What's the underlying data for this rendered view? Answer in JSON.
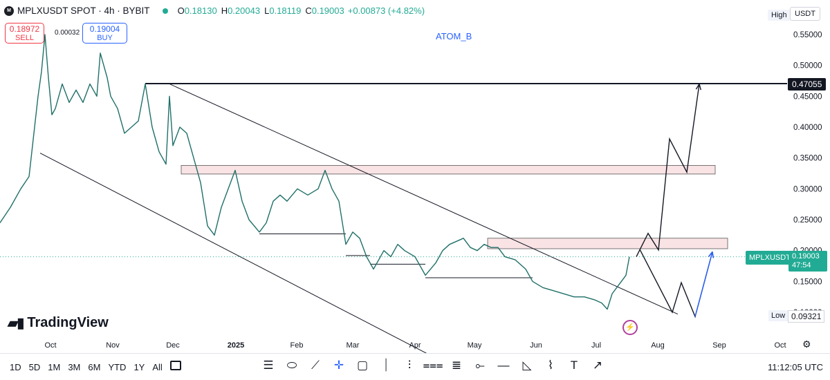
{
  "header": {
    "symbol_title": "MPLXUSDT SPOT · 4h · BYBIT",
    "logo_text": "M",
    "ohlc": [
      {
        "k": "O",
        "v": "0.18130"
      },
      {
        "k": "H",
        "v": "0.20043"
      },
      {
        "k": "L",
        "v": "0.18119"
      },
      {
        "k": "C",
        "v": "0.19003"
      },
      {
        "k": "",
        "v": "+0.00873 (+4.82%)"
      }
    ]
  },
  "trade": {
    "sell_price": "0.18972",
    "sell_label": "SELL",
    "spread": "0.00032",
    "buy_price": "0.19004",
    "buy_label": "BUY"
  },
  "annotation": "ATOM_B",
  "price_axis": {
    "currency": "USDT",
    "high_label": "High",
    "low_label": "Low",
    "low_value": "0.09321",
    "key_level": "0.47055",
    "last_symbol": "MPLXUSDT",
    "last_price": "0.19003",
    "countdown": "47:54",
    "ticks": [
      "0.55000",
      "0.50000",
      "0.45000",
      "0.40000",
      "0.35000",
      "0.30000",
      "0.25000",
      "0.20000",
      "0.15000",
      "0.10000"
    ]
  },
  "brand": "TradingView",
  "bottom_bar": {
    "ranges": [
      "1D",
      "5D",
      "1M",
      "3M",
      "6M",
      "YTD",
      "1Y",
      "All"
    ],
    "clock": "11:12:05 UTC",
    "tools": [
      "horizontal-lines-icon",
      "ellipse-icon",
      "trend-line-icon",
      "crosshair-icon",
      "rectangle-icon",
      "vertical-line-icon",
      "bars-icon",
      "long-position-icon",
      "short-position-icon",
      "horizontal-ray-icon",
      "horizontal-line-icon",
      "triangle-icon",
      "path-icon",
      "text-icon",
      "arrow-icon"
    ]
  },
  "chart_data": {
    "type": "line",
    "title": "MPLXUSDT SPOT · 4h · BYBIT",
    "x_ticks": [
      "Oct",
      "Nov",
      "Dec",
      "2025",
      "Feb",
      "Mar",
      "Apr",
      "May",
      "Jun",
      "Jul",
      "Aug",
      "Sep",
      "Oct"
    ],
    "ylim": [
      0.09,
      0.57
    ],
    "y_ticks": [
      0.55,
      0.5,
      0.45,
      0.4,
      0.35,
      0.3,
      0.25,
      0.2,
      0.15,
      0.1
    ],
    "series": [
      {
        "values": [
          [
            0,
            0.245
          ],
          [
            15,
            0.27
          ],
          [
            30,
            0.3
          ],
          [
            42,
            0.32
          ],
          [
            50,
            0.4
          ],
          [
            55,
            0.45
          ],
          [
            60,
            0.49
          ],
          [
            65,
            0.55
          ],
          [
            70,
            0.48
          ],
          [
            75,
            0.42
          ],
          [
            80,
            0.43
          ],
          [
            90,
            0.47
          ],
          [
            100,
            0.44
          ],
          [
            110,
            0.46
          ],
          [
            120,
            0.44
          ],
          [
            130,
            0.47
          ],
          [
            140,
            0.45
          ],
          [
            145,
            0.52
          ],
          [
            150,
            0.5
          ],
          [
            155,
            0.48
          ],
          [
            160,
            0.45
          ],
          [
            170,
            0.43
          ],
          [
            180,
            0.39
          ],
          [
            190,
            0.4
          ],
          [
            200,
            0.41
          ],
          [
            210,
            0.47
          ],
          [
            220,
            0.4
          ],
          [
            230,
            0.36
          ],
          [
            240,
            0.34
          ],
          [
            245,
            0.45
          ],
          [
            250,
            0.37
          ],
          [
            260,
            0.4
          ],
          [
            270,
            0.39
          ],
          [
            280,
            0.35
          ],
          [
            290,
            0.31
          ],
          [
            300,
            0.24
          ],
          [
            310,
            0.225
          ],
          [
            320,
            0.27
          ],
          [
            330,
            0.3
          ],
          [
            340,
            0.33
          ],
          [
            350,
            0.28
          ],
          [
            360,
            0.25
          ],
          [
            375,
            0.23
          ],
          [
            385,
            0.245
          ],
          [
            395,
            0.28
          ],
          [
            405,
            0.29
          ],
          [
            415,
            0.28
          ],
          [
            430,
            0.3
          ],
          [
            445,
            0.29
          ],
          [
            460,
            0.3
          ],
          [
            470,
            0.33
          ],
          [
            480,
            0.3
          ],
          [
            490,
            0.28
          ],
          [
            500,
            0.21
          ],
          [
            510,
            0.23
          ],
          [
            520,
            0.22
          ],
          [
            530,
            0.19
          ],
          [
            540,
            0.17
          ],
          [
            555,
            0.2
          ],
          [
            565,
            0.19
          ],
          [
            575,
            0.21
          ],
          [
            585,
            0.2
          ],
          [
            600,
            0.19
          ],
          [
            615,
            0.16
          ],
          [
            630,
            0.18
          ],
          [
            640,
            0.2
          ],
          [
            650,
            0.21
          ],
          [
            660,
            0.215
          ],
          [
            670,
            0.22
          ],
          [
            680,
            0.205
          ],
          [
            690,
            0.2
          ],
          [
            700,
            0.21
          ],
          [
            710,
            0.205
          ],
          [
            720,
            0.205
          ],
          [
            730,
            0.19
          ],
          [
            745,
            0.185
          ],
          [
            760,
            0.17
          ],
          [
            770,
            0.15
          ],
          [
            785,
            0.14
          ],
          [
            800,
            0.135
          ],
          [
            815,
            0.13
          ],
          [
            830,
            0.125
          ],
          [
            845,
            0.125
          ],
          [
            860,
            0.12
          ],
          [
            870,
            0.115
          ],
          [
            878,
            0.105
          ],
          [
            885,
            0.13
          ],
          [
            895,
            0.145
          ],
          [
            905,
            0.16
          ],
          [
            910,
            0.19
          ]
        ]
      }
    ],
    "levels": [
      {
        "value": 0.47055,
        "label": "0.47055"
      }
    ],
    "zones": [
      {
        "from": 0.324,
        "to": 0.338
      },
      {
        "from": 0.203,
        "to": 0.22
      }
    ],
    "channel": [
      {
        "from_x": 58,
        "from_y": 0.358,
        "to_x": 640,
        "to_y": 0.02
      },
      {
        "from_x": 245,
        "from_y": 0.47,
        "to_x": 980,
        "to_y": 0.097
      }
    ],
    "supports": [
      {
        "x1": 375,
        "x2": 500,
        "y": 0.227
      },
      {
        "x1": 500,
        "x2": 535,
        "y": 0.192
      },
      {
        "x1": 535,
        "x2": 615,
        "y": 0.178
      },
      {
        "x1": 615,
        "x2": 770,
        "y": 0.156
      }
    ],
    "projection": [
      [
        920,
        0.19
      ],
      [
        937,
        0.228
      ],
      [
        952,
        0.201
      ],
      [
        968,
        0.381
      ],
      [
        993,
        0.327
      ],
      [
        1011,
        0.47
      ]
    ],
    "projection2": [
      [
        925,
        0.202
      ],
      [
        972,
        0.1
      ],
      [
        985,
        0.148
      ],
      [
        1005,
        0.093
      ],
      [
        1030,
        0.198
      ]
    ]
  },
  "colors": {
    "up": "#22ab94",
    "down": "#f23645",
    "accent": "#2962ff",
    "ink": "#131722",
    "zone": "#f8d7da"
  }
}
